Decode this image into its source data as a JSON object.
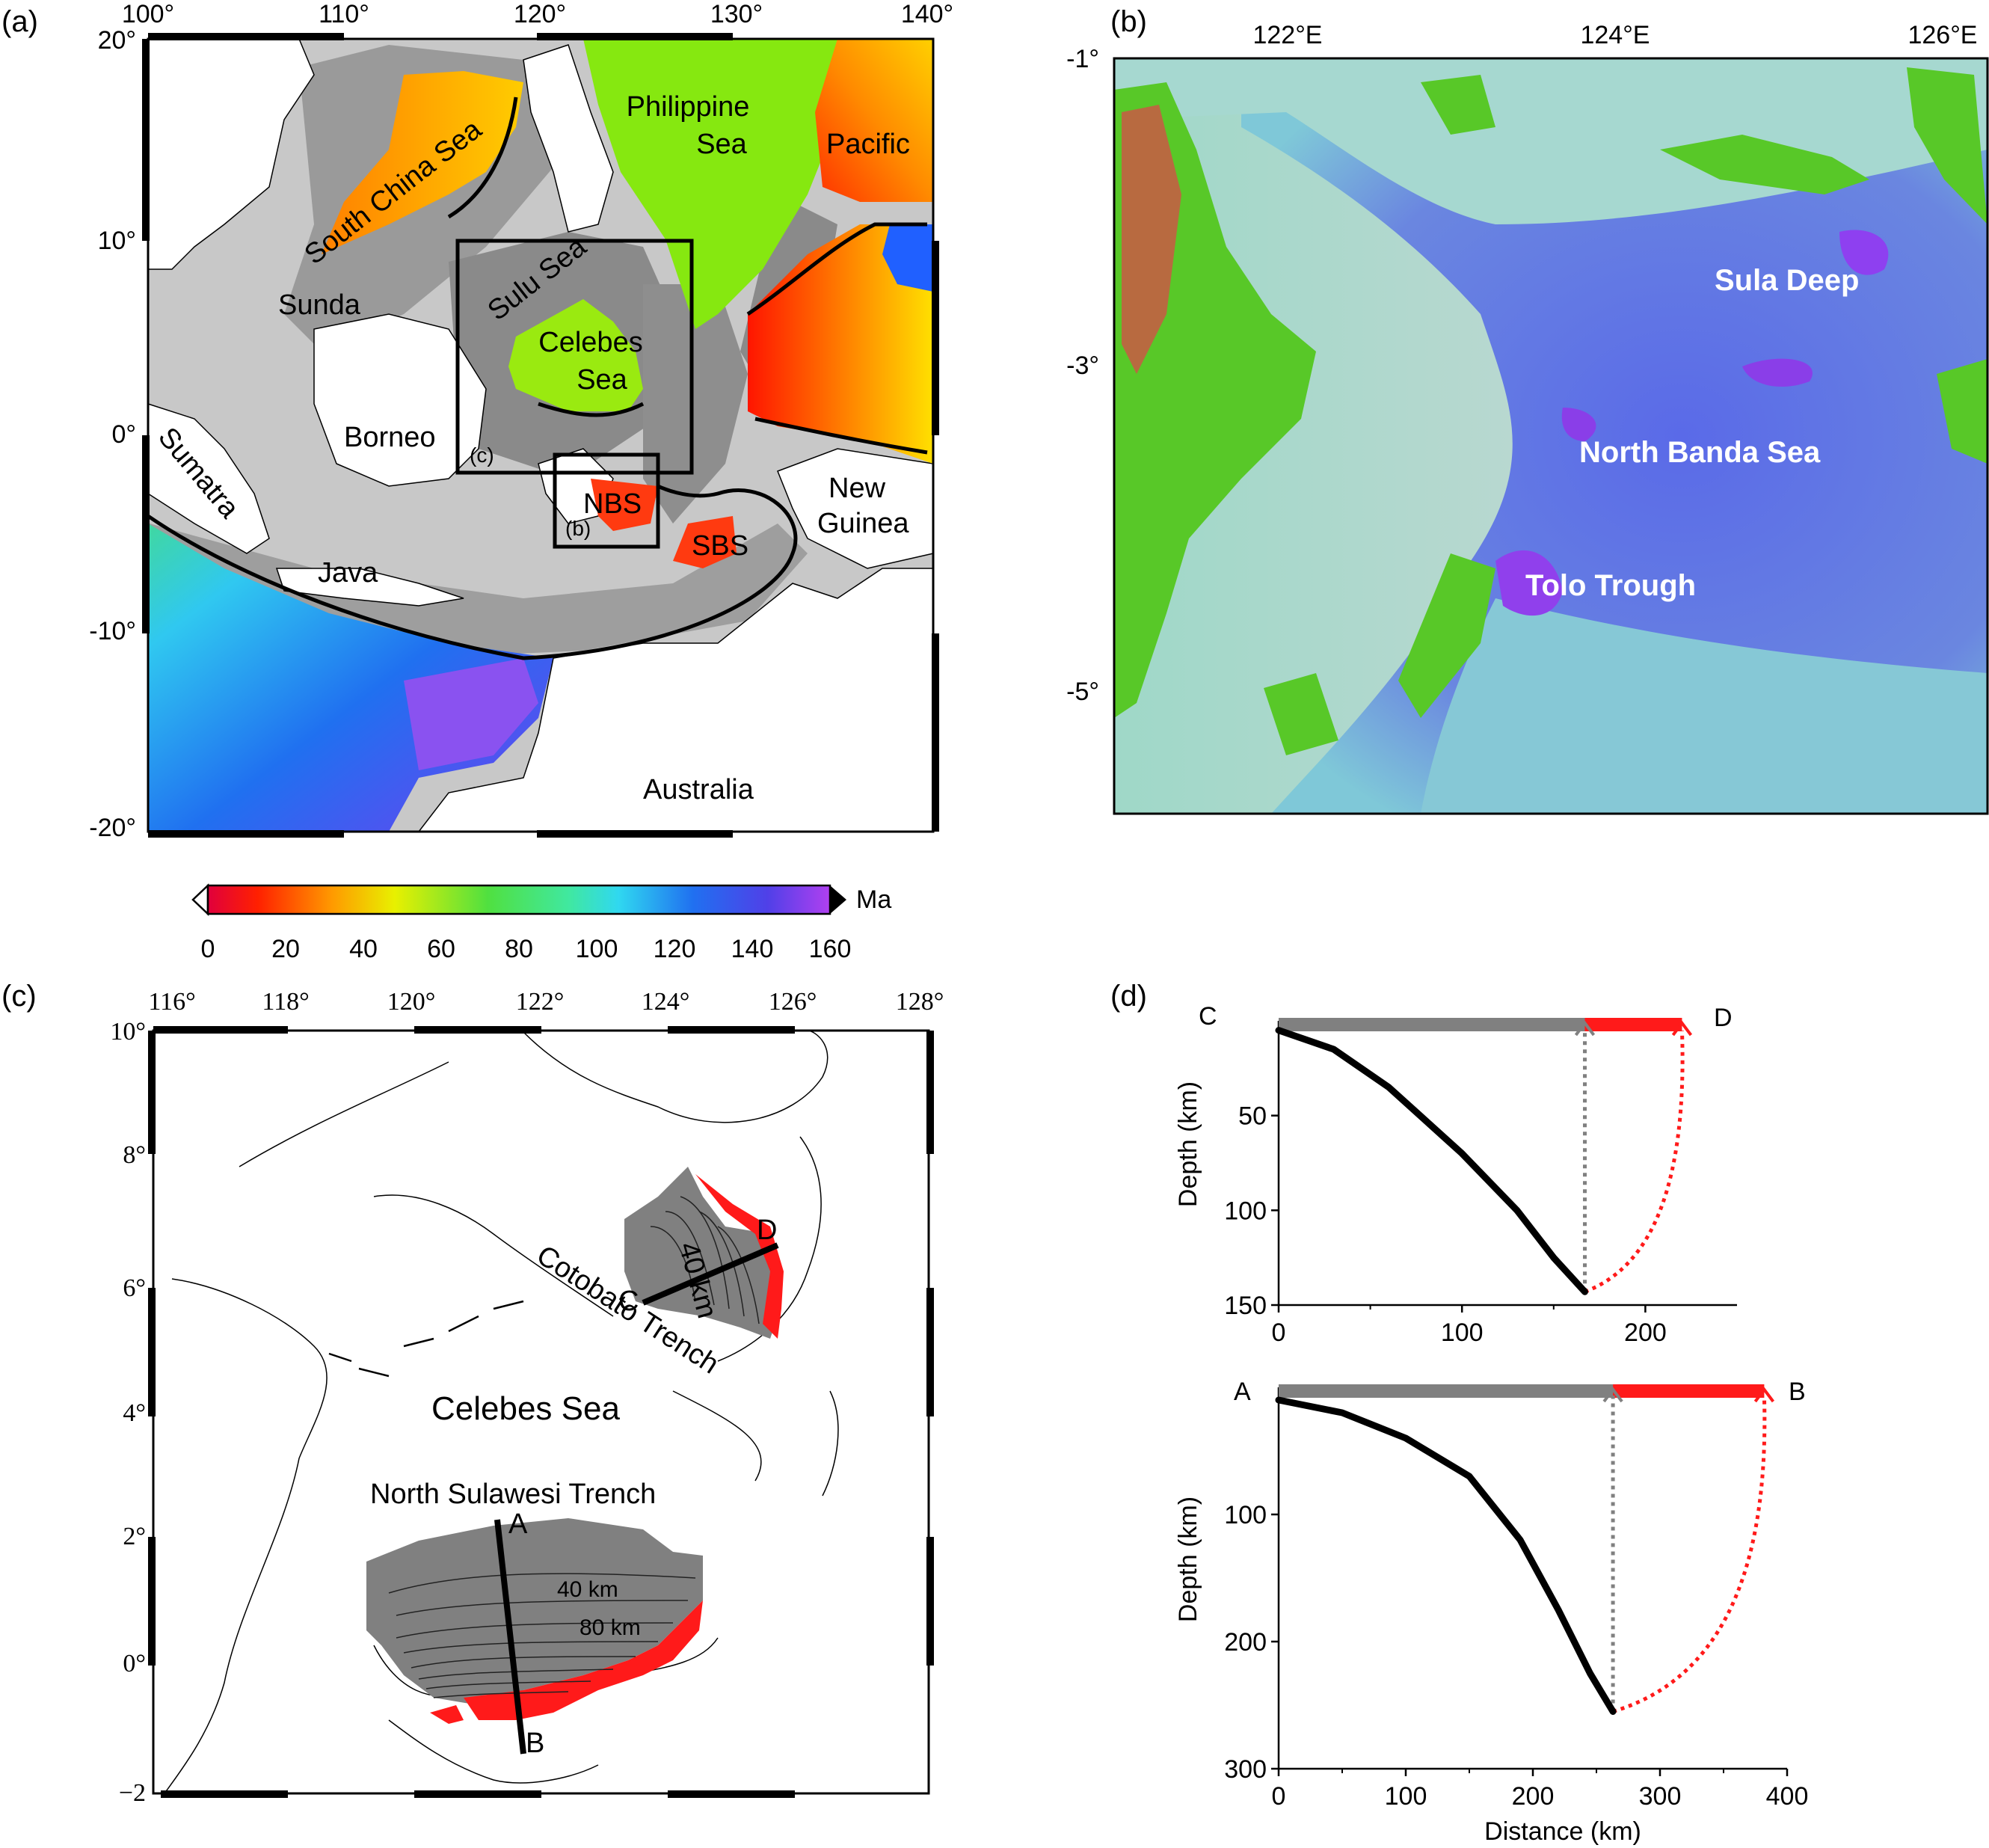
{
  "panel_a": {
    "tag": "(a)",
    "lon_ticks": [
      "100°",
      "110°",
      "120°",
      "130°",
      "140°"
    ],
    "lat_ticks": [
      "20°",
      "10°",
      "0°",
      "-10°",
      "-20°"
    ],
    "labels": {
      "scs": "South China Sea",
      "phil1": "Philippine",
      "phil2": "Sea",
      "pacific": "Pacific",
      "sulu": "Sulu Sea",
      "sunda": "Sunda",
      "celebes1": "Celebes",
      "celebes2": "Sea",
      "borneo": "Borneo",
      "sumatra": "Sumatra",
      "java": "Java",
      "nbs": "NBS",
      "sbs": "SBS",
      "ng1": "New",
      "ng2": "Guinea",
      "australia": "Australia",
      "box_b": "(b)",
      "box_c": "(c)"
    }
  },
  "colorbar": {
    "unit": "Ma",
    "ticks": [
      "0",
      "20",
      "40",
      "60",
      "80",
      "100",
      "120",
      "140",
      "160"
    ]
  },
  "panel_b": {
    "tag": "(b)",
    "lon_ticks": [
      "122°E",
      "124°E",
      "126°E"
    ],
    "lat_ticks": [
      "-1°",
      "-3°",
      "-5°"
    ],
    "labels": {
      "sula": "Sula Deep",
      "nbs": "North Banda Sea",
      "tolo": "Tolo Trough"
    }
  },
  "panel_c": {
    "tag": "(c)",
    "lon_ticks": [
      "116°",
      "118°",
      "120°",
      "122°",
      "124°",
      "126°",
      "128°"
    ],
    "lat_ticks": [
      "10°",
      "8°",
      "6°",
      "4°",
      "2°",
      "0°",
      "−2"
    ],
    "labels": {
      "cotobato": "Cotobato Trench",
      "celebes": "Celebes Sea",
      "nst": "North Sulawesi Trench",
      "c40": "40 km",
      "s40": "40 km",
      "s80": "80 km",
      "A": "A",
      "B": "B",
      "C": "C",
      "D": "D"
    }
  },
  "panel_d": {
    "tag": "(d)",
    "ylabel": "Depth (km)",
    "xlabel": "Distance (km)",
    "top_left": "C",
    "top_right": "D",
    "bottom_left": "A",
    "bottom_right": "B"
  },
  "chart_data": [
    {
      "type": "line",
      "panel": "d-top",
      "xlim": [
        0,
        250
      ],
      "ylim": [
        0,
        150
      ],
      "x_ticks": [
        0,
        100,
        200
      ],
      "y_ticks": [
        50,
        100,
        150
      ],
      "slab_profile": {
        "x": [
          0,
          30,
          60,
          100,
          130,
          150,
          167
        ],
        "y": [
          5,
          15,
          35,
          70,
          100,
          125,
          143
        ]
      },
      "projected_length_km": 167,
      "unfolded_length_km": 220
    },
    {
      "type": "line",
      "panel": "d-bottom",
      "xlim": [
        0,
        400
      ],
      "ylim": [
        0,
        300
      ],
      "x_ticks": [
        0,
        100,
        200,
        300,
        400
      ],
      "y_ticks": [
        100,
        200,
        300
      ],
      "slab_profile": {
        "x": [
          0,
          50,
          100,
          150,
          190,
          220,
          245,
          263
        ],
        "y": [
          10,
          20,
          40,
          70,
          120,
          175,
          225,
          255
        ]
      },
      "projected_length_km": 263,
      "unfolded_length_km": 382
    }
  ]
}
